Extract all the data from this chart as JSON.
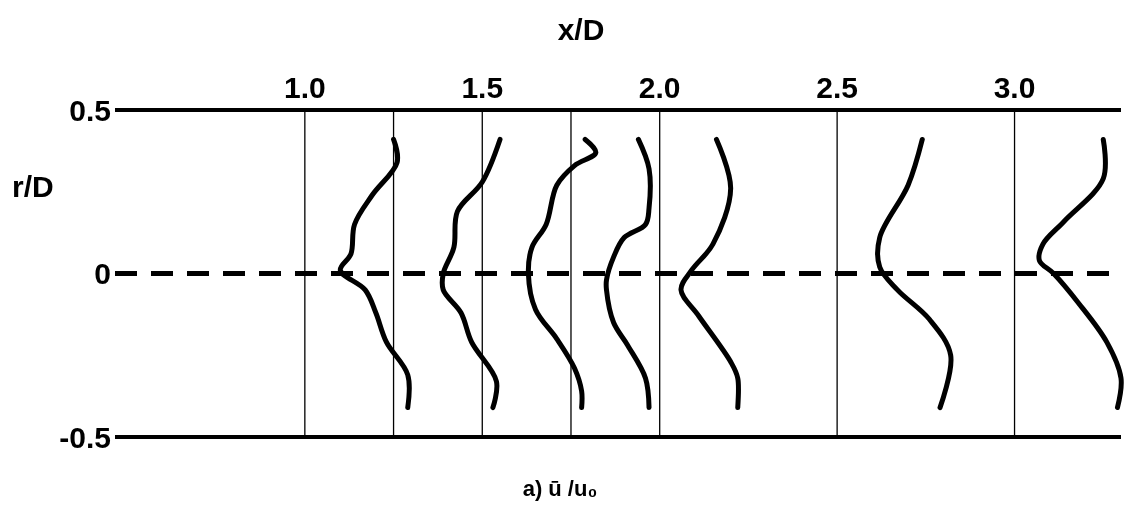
{
  "chart_data": {
    "type": "line",
    "xlabel": "x/D",
    "ylabel": "r/D",
    "annotations": [
      "a)  ū /u₀"
    ],
    "xlim": [
      0.465,
      3.3
    ],
    "ylim": [
      -0.5,
      0.5
    ],
    "xticks": [
      {
        "value": 1,
        "label": "1.0"
      },
      {
        "value": 1.5,
        "label": "1.5"
      },
      {
        "value": 2,
        "label": "2.0"
      },
      {
        "value": 2.5,
        "label": "2.5"
      },
      {
        "value": 3,
        "label": "3.0"
      }
    ],
    "yticks": [
      -0.5,
      0,
      0.5
    ],
    "grid": false,
    "ref_lines": [
      {
        "axis": "y",
        "value": 0,
        "line_style": "dashed"
      },
      {
        "axis": "x",
        "value": 1
      },
      {
        "axis": "x",
        "value": 1.25
      },
      {
        "axis": "x",
        "value": 1.5
      },
      {
        "axis": "x",
        "value": 1.75
      },
      {
        "axis": "x",
        "value": 2
      },
      {
        "axis": "x",
        "value": 2.5
      },
      {
        "axis": "x",
        "value": 3
      }
    ],
    "series": [
      {
        "color": "#000000",
        "x": [
          1.25,
          1.26,
          1.19,
          1.14,
          1.13,
          1.1,
          1.17,
          1.2,
          1.23,
          1.29,
          1.29
        ],
        "values": [
          0.41,
          0.34,
          0.24,
          0.15,
          0.06,
          0.01,
          -0.05,
          -0.12,
          -0.21,
          -0.31,
          -0.41
        ]
      },
      {
        "color": "#000000",
        "x": [
          1.55,
          1.5,
          1.43,
          1.42,
          1.39,
          1.39,
          1.44,
          1.47,
          1.54,
          1.53
        ],
        "values": [
          0.41,
          0.28,
          0.19,
          0.08,
          0.0,
          -0.05,
          -0.12,
          -0.21,
          -0.33,
          -0.41
        ]
      },
      {
        "color": "#000000",
        "x": [
          1.79,
          1.82,
          1.76,
          1.71,
          1.68,
          1.64,
          1.63,
          1.65,
          1.71,
          1.76,
          1.78,
          1.78
        ],
        "values": [
          0.41,
          0.37,
          0.33,
          0.27,
          0.15,
          0.08,
          0.0,
          -0.11,
          -0.2,
          -0.29,
          -0.36,
          -0.41
        ]
      },
      {
        "color": "#000000",
        "x": [
          1.94,
          1.97,
          1.97,
          1.96,
          1.9,
          1.87,
          1.85,
          1.85,
          1.87,
          1.91,
          1.96,
          1.97
        ],
        "values": [
          0.41,
          0.32,
          0.2,
          0.15,
          0.11,
          0.05,
          -0.02,
          -0.05,
          -0.15,
          -0.22,
          -0.32,
          -0.41
        ]
      },
      {
        "color": "#000000",
        "x": [
          2.16,
          2.2,
          2.15,
          2.09,
          2.06,
          2.11,
          2.2,
          2.22,
          2.22
        ],
        "values": [
          0.41,
          0.26,
          0.09,
          0.01,
          -0.05,
          -0.13,
          -0.27,
          -0.32,
          -0.41
        ]
      },
      {
        "color": "#000000",
        "x": [
          2.74,
          2.7,
          2.62,
          2.62,
          2.67,
          2.76,
          2.82,
          2.79
        ],
        "values": [
          0.41,
          0.27,
          0.11,
          0.02,
          -0.05,
          -0.14,
          -0.25,
          -0.41
        ]
      },
      {
        "color": "#000000",
        "x": [
          3.25,
          3.25,
          3.14,
          3.08,
          3.07,
          3.11,
          3.18,
          3.26,
          3.3,
          3.29
        ],
        "values": [
          0.41,
          0.29,
          0.16,
          0.09,
          0.04,
          0.0,
          -0.09,
          -0.21,
          -0.32,
          -0.41
        ]
      }
    ]
  }
}
